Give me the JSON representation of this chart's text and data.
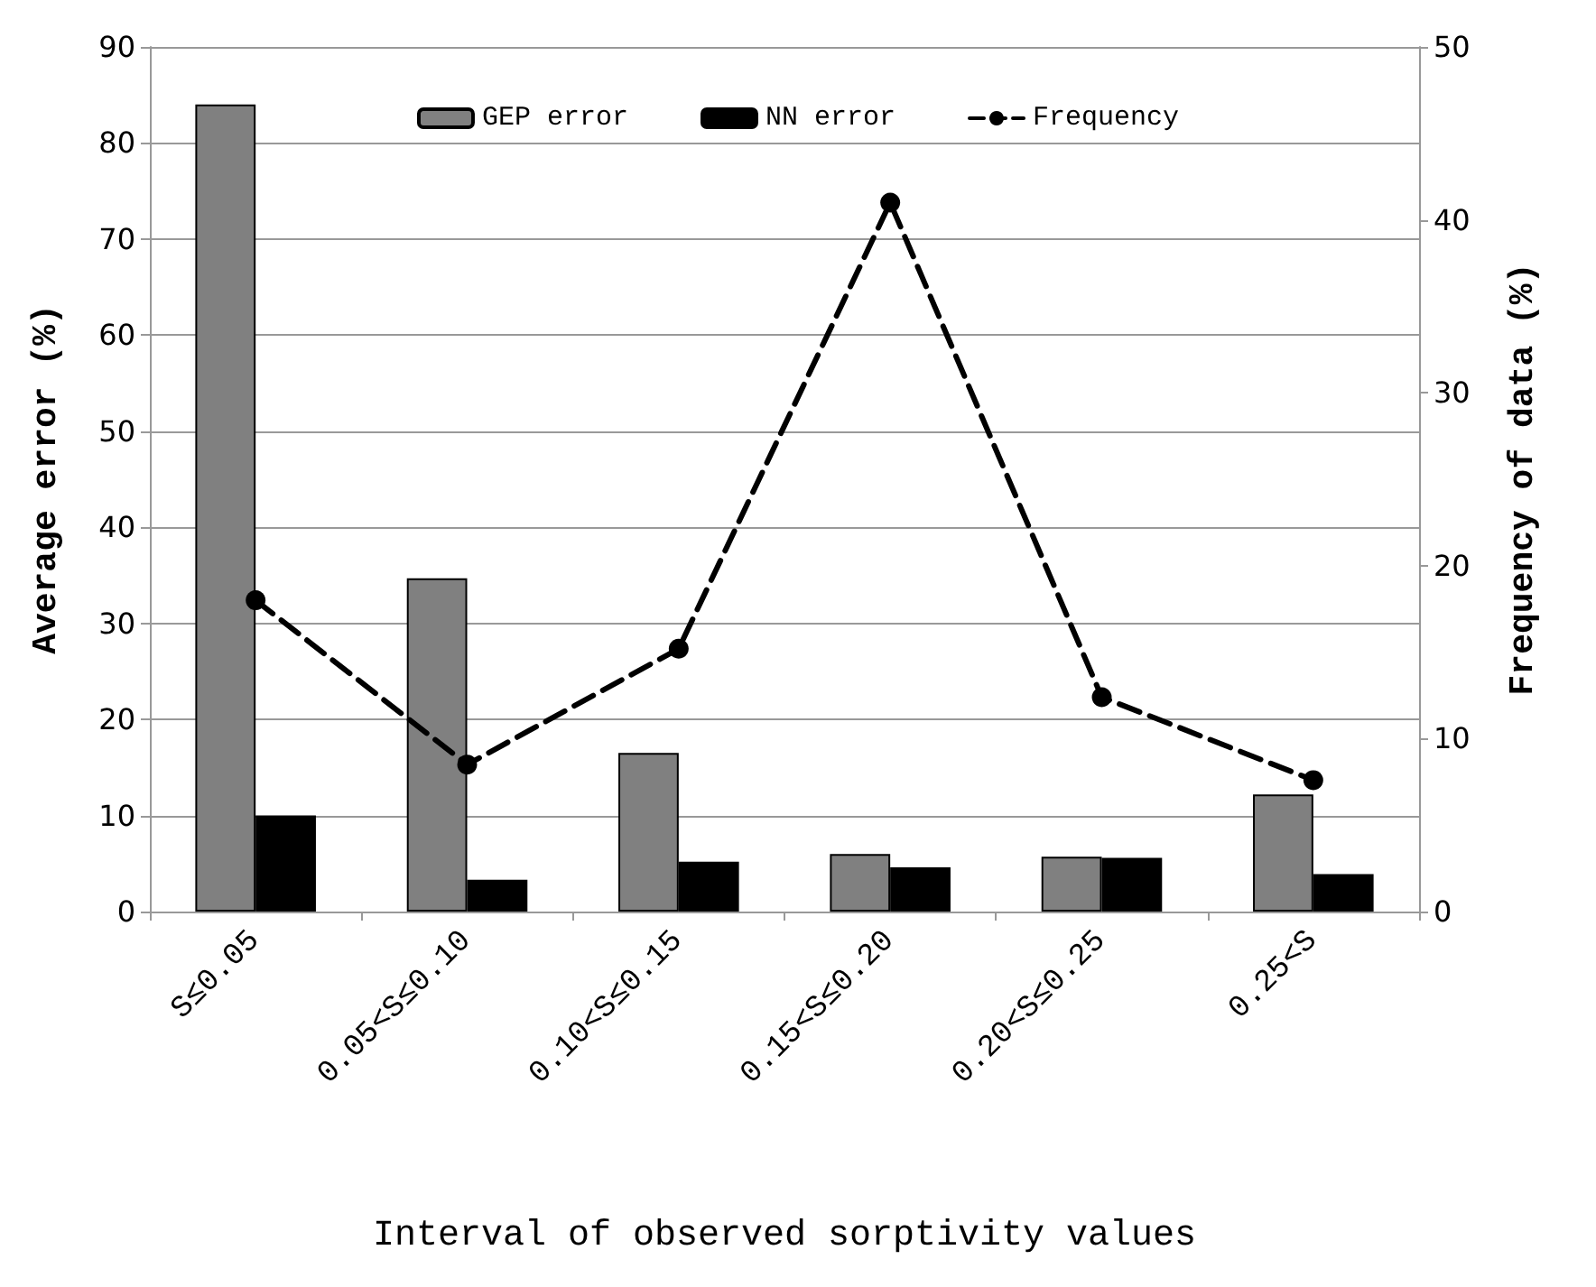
{
  "chart_data": {
    "type": "bar",
    "xlabel": "Interval of observed sorptivity values",
    "ylabel": "Average error (%)",
    "y2label": "Frequency of data (%)",
    "categories": [
      "S≤0.05",
      "0.05<S≤0.10",
      "0.10<S≤0.15",
      "0.15<S≤0.20",
      "0.20<S≤0.25",
      "0.25<S"
    ],
    "series": [
      {
        "name": "GEP error",
        "color": "#808080",
        "values": [
          84,
          34.7,
          16.5,
          6,
          5.7,
          12.2
        ]
      },
      {
        "name": "NN error",
        "color": "#000000",
        "values": [
          10,
          3.3,
          5.2,
          4.6,
          5.6,
          3.9
        ]
      },
      {
        "name": "Frequency",
        "type": "line",
        "axis": "y2",
        "color": "#000000",
        "marker": "circle",
        "line_style": "dashed",
        "values": [
          18,
          8.5,
          15.2,
          41,
          12.4,
          7.6
        ]
      }
    ],
    "ylim": [
      0,
      90
    ],
    "yticks": [
      0,
      10,
      20,
      30,
      40,
      50,
      60,
      70,
      80,
      90
    ],
    "y2lim": [
      0,
      50
    ],
    "y2ticks": [
      0,
      10,
      20,
      30,
      40,
      50
    ],
    "grid": "y",
    "legend": "top"
  }
}
